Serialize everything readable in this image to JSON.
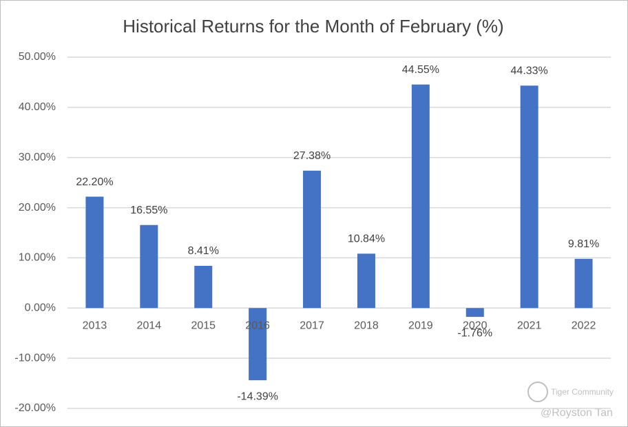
{
  "chart_data": {
    "type": "bar",
    "title": "Historical Returns for the Month of February (%)",
    "categories": [
      "2013",
      "2014",
      "2015",
      "2016",
      "2017",
      "2018",
      "2019",
      "2020",
      "2021",
      "2022"
    ],
    "values": [
      22.2,
      16.55,
      8.41,
      -14.39,
      27.38,
      10.84,
      44.55,
      -1.76,
      44.33,
      9.81
    ],
    "value_labels": [
      "22.20%",
      "16.55%",
      "8.41%",
      "-14.39%",
      "27.38%",
      "10.84%",
      "44.55%",
      "-1.76%",
      "44.33%",
      "9.81%"
    ],
    "color": "#4472c4",
    "ylim": [
      -20,
      50
    ],
    "yticks": [
      {
        "value": -20,
        "label": "-20.00%"
      },
      {
        "value": -10,
        "label": "-10.00%"
      },
      {
        "value": 0,
        "label": "0.00%"
      },
      {
        "value": 10,
        "label": "10.00%"
      },
      {
        "value": 20,
        "label": "20.00%"
      },
      {
        "value": 30,
        "label": "30.00%"
      },
      {
        "value": 40,
        "label": "40.00%"
      },
      {
        "value": 50,
        "label": "50.00%"
      }
    ],
    "grid": true,
    "watermark": {
      "brand": "Tiger Community",
      "author": "@Royston Tan"
    }
  }
}
